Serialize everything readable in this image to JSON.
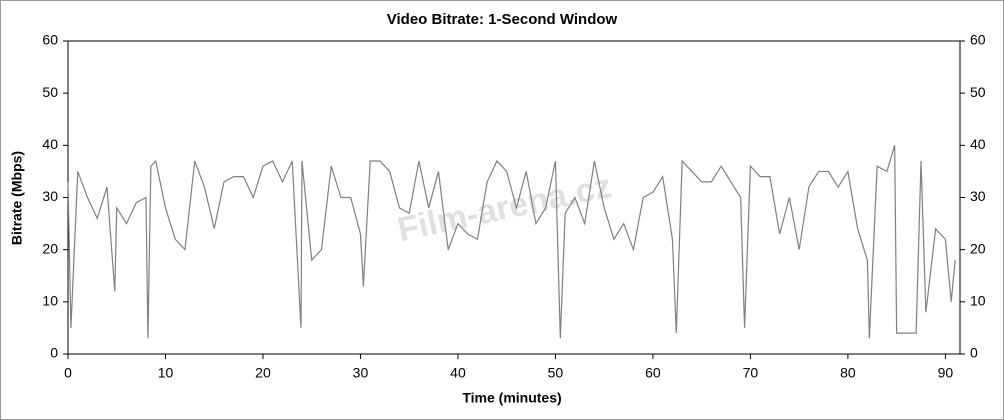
{
  "chart_data": {
    "type": "line",
    "title": "Video Bitrate: 1-Second Window",
    "x_label": "Time (minutes)",
    "y_label": "Bitrate (Mbps)",
    "watermark": "Film-arena.cz",
    "x": [
      0,
      0.3,
      1,
      2,
      3,
      4,
      4.8,
      5,
      6,
      7,
      8,
      8.2,
      8.5,
      9,
      10,
      11,
      12,
      13,
      14,
      15,
      16,
      17,
      18,
      19,
      20,
      21,
      22,
      23,
      23.9,
      24,
      25,
      26,
      27,
      28,
      29,
      30,
      30.3,
      31,
      32,
      33,
      34,
      35,
      36,
      37,
      38,
      39,
      40,
      41,
      42,
      43,
      44,
      45,
      46,
      47,
      48,
      49,
      50,
      50.5,
      51,
      52,
      53,
      54,
      55,
      56,
      57,
      58,
      59,
      60,
      61,
      62,
      62.4,
      63,
      64,
      65,
      66,
      67,
      68,
      69,
      69.4,
      70,
      71,
      72,
      73,
      74,
      75,
      76,
      77,
      78,
      79,
      80,
      81,
      82,
      82.2,
      83,
      84,
      84.8,
      85,
      86,
      87,
      87.5,
      88,
      89,
      90,
      90.6,
      91
    ],
    "series": [
      {
        "name": "Bitrate",
        "color": "#808080",
        "values": [
          33,
          5,
          35,
          30,
          26,
          32,
          12,
          28,
          25,
          29,
          30,
          3,
          36,
          37,
          28,
          22,
          20,
          37,
          32,
          24,
          33,
          34,
          34,
          30,
          36,
          37,
          33,
          37,
          5,
          37,
          18,
          20,
          36,
          30,
          30,
          23,
          13,
          37,
          37,
          35,
          28,
          27,
          37,
          28,
          35,
          20,
          25,
          23,
          22,
          33,
          37,
          35,
          28,
          35,
          25,
          28,
          37,
          3,
          27,
          30,
          25,
          37,
          28,
          22,
          25,
          20,
          30,
          31,
          34,
          22,
          4,
          37,
          35,
          33,
          33,
          36,
          33,
          30,
          5,
          36,
          34,
          34,
          23,
          30,
          20,
          32,
          35,
          35,
          32,
          35,
          24,
          18,
          3,
          36,
          35,
          40,
          4,
          4,
          4,
          37,
          8,
          24,
          22,
          10,
          18
        ]
      }
    ],
    "xlim": [
      0,
      91.5
    ],
    "xticks": [
      0,
      10,
      20,
      30,
      40,
      50,
      60,
      70,
      80,
      90
    ],
    "ylim": [
      0,
      60
    ],
    "yticks": [
      0,
      10,
      20,
      30,
      40,
      50,
      60
    ],
    "y2lim": [
      0,
      60
    ],
    "y2ticks": [
      0,
      10,
      20,
      30,
      40,
      50,
      60
    ]
  }
}
